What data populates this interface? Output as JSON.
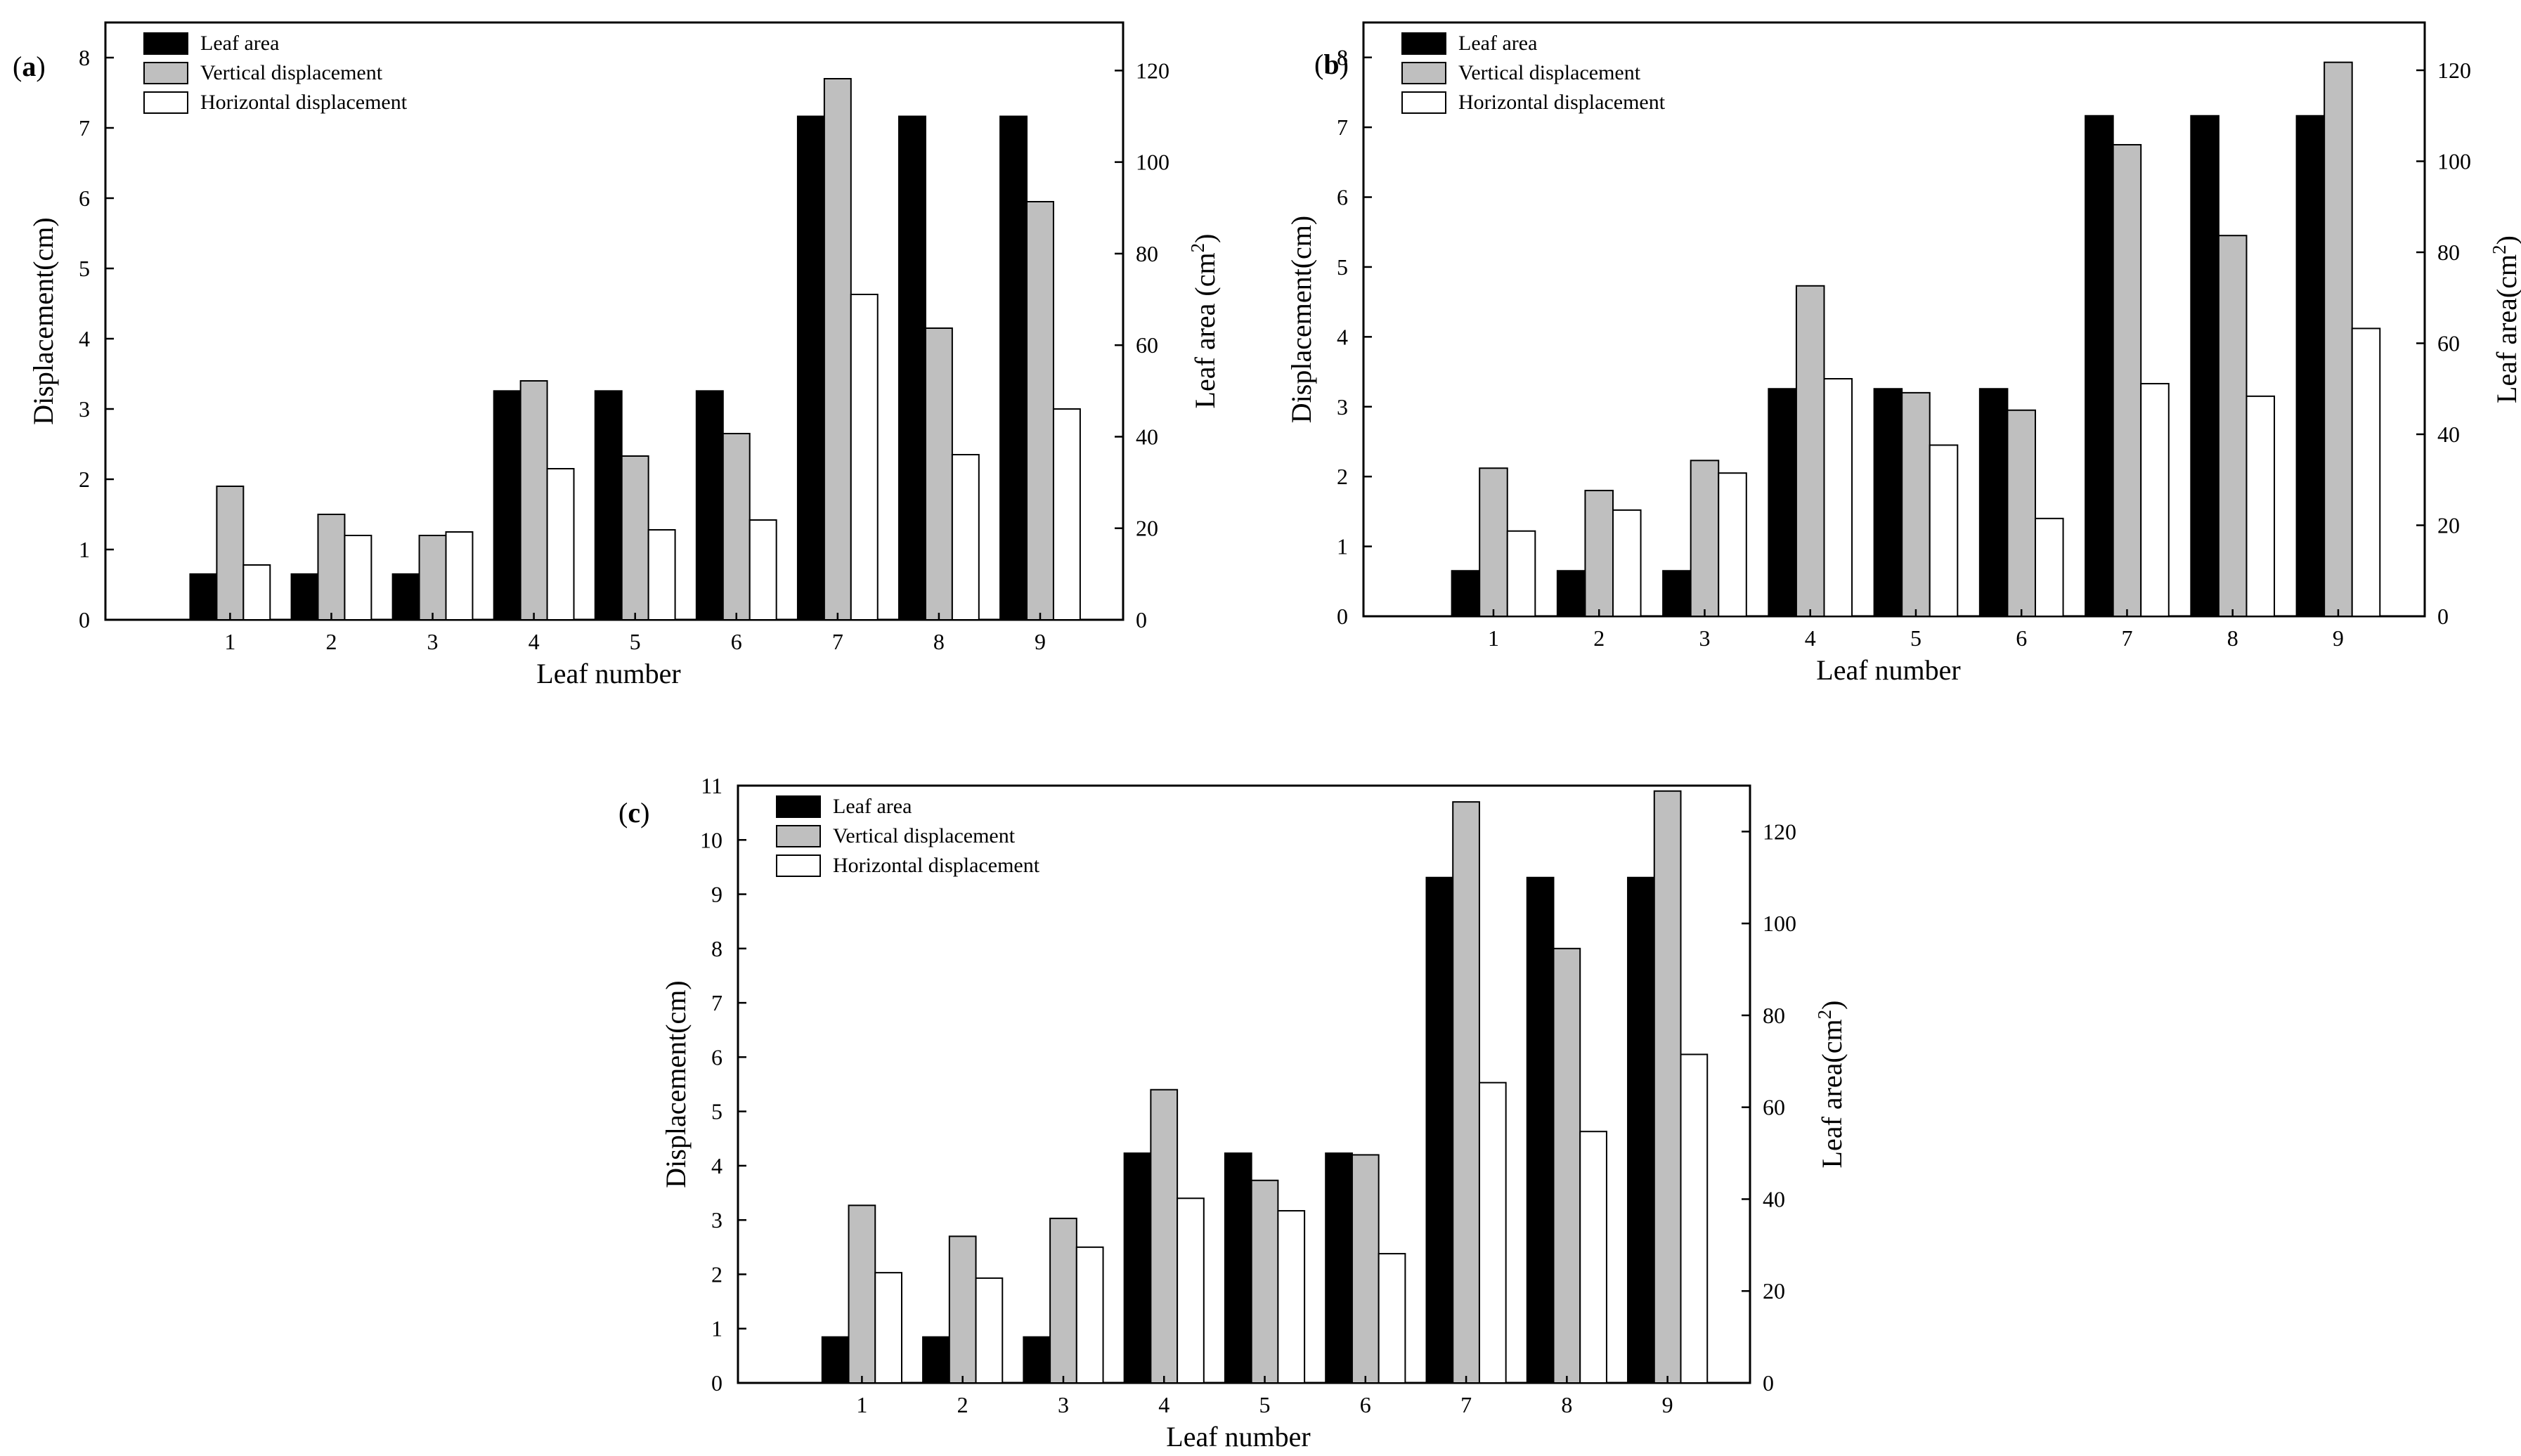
{
  "colors": {
    "leaf_area": "#000000",
    "vertical": "#bfbfbf",
    "horizontal": "#ffffff",
    "axis": "#000000"
  },
  "chart_data": [
    {
      "type": "bar",
      "panel_label": "(a)",
      "categories": [
        "1",
        "2",
        "3",
        "4",
        "5",
        "6",
        "7",
        "8",
        "9"
      ],
      "xlabel": "Leaf number",
      "ylabel": "Displacement(cm)",
      "y2label": "Leaf area (cm2)",
      "ylim": [
        0,
        8.5
      ],
      "y2lim": [
        0,
        130.5
      ],
      "yticks": [
        0,
        1,
        2,
        3,
        4,
        5,
        6,
        7,
        8
      ],
      "y2ticks": [
        0,
        20,
        40,
        60,
        80,
        100,
        120
      ],
      "legend_position": "top-left",
      "series": [
        {
          "name": "Leaf area",
          "axis": "right",
          "values": [
            10,
            10,
            10,
            50,
            50,
            50,
            110,
            110,
            110
          ]
        },
        {
          "name": "Vertical displacement",
          "axis": "left",
          "values": [
            1.9,
            1.5,
            1.2,
            3.4,
            2.33,
            2.65,
            7.7,
            4.15,
            5.95
          ]
        },
        {
          "name": "Horizontal displacement",
          "axis": "left",
          "values": [
            0.78,
            1.2,
            1.25,
            2.15,
            1.28,
            1.42,
            4.63,
            2.35,
            3.0
          ]
        }
      ]
    },
    {
      "type": "bar",
      "panel_label": "(b)",
      "categories": [
        "1",
        "2",
        "3",
        "4",
        "5",
        "6",
        "7",
        "8",
        "9"
      ],
      "xlabel": "Leaf number",
      "ylabel": "Displacement(cm)",
      "y2label": "Leaf area(cm2)",
      "ylim": [
        0,
        8.5
      ],
      "y2lim": [
        0,
        130.5
      ],
      "yticks": [
        0,
        1,
        2,
        3,
        4,
        5,
        6,
        7,
        8
      ],
      "y2ticks": [
        0,
        20,
        40,
        60,
        80,
        100,
        120
      ],
      "legend_position": "top-left",
      "series": [
        {
          "name": "Leaf area",
          "axis": "right",
          "values": [
            10,
            10,
            10,
            50,
            50,
            50,
            110,
            110,
            110
          ]
        },
        {
          "name": "Vertical displacement",
          "axis": "left",
          "values": [
            2.12,
            1.8,
            2.23,
            4.73,
            3.2,
            2.95,
            6.75,
            5.45,
            7.93
          ]
        },
        {
          "name": "Horizontal displacement",
          "axis": "left",
          "values": [
            1.22,
            1.52,
            2.05,
            3.4,
            2.45,
            1.4,
            3.33,
            3.15,
            4.12
          ]
        }
      ]
    },
    {
      "type": "bar",
      "panel_label": "(c)",
      "categories": [
        "1",
        "2",
        "3",
        "4",
        "5",
        "6",
        "7",
        "8",
        "9"
      ],
      "xlabel": "Leaf number",
      "ylabel": "Displacement(cm)",
      "y2label": "Leaf area(cm2)",
      "ylim": [
        0,
        11
      ],
      "y2lim": [
        0,
        130
      ],
      "yticks": [
        0,
        1,
        2,
        3,
        4,
        5,
        6,
        7,
        8,
        9,
        10,
        11
      ],
      "y2ticks": [
        0,
        20,
        40,
        60,
        80,
        100,
        120
      ],
      "legend_position": "top-left",
      "series": [
        {
          "name": "Leaf area",
          "axis": "right",
          "values": [
            10,
            10,
            10,
            50,
            50,
            50,
            110,
            110,
            110
          ]
        },
        {
          "name": "Vertical displacement",
          "axis": "left",
          "values": [
            3.27,
            2.7,
            3.03,
            5.4,
            3.73,
            4.2,
            10.7,
            8.0,
            10.9
          ]
        },
        {
          "name": "Horizontal displacement",
          "axis": "left",
          "values": [
            2.03,
            1.93,
            2.5,
            3.4,
            3.17,
            2.38,
            5.53,
            4.63,
            6.05
          ]
        }
      ]
    }
  ]
}
